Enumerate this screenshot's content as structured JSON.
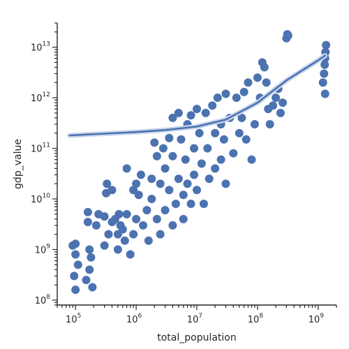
{
  "chart_data": {
    "type": "scatter",
    "title": "",
    "xlabel": "total_population",
    "ylabel": "gdp_value",
    "x_scale": "log",
    "y_scale": "log",
    "xlim": [
      50000,
      2000000000
    ],
    "ylim": [
      80000000,
      30000000000000
    ],
    "x_ticks": [
      {
        "base": "10",
        "exp": "5",
        "value": 100000
      },
      {
        "base": "10",
        "exp": "6",
        "value": 1000000
      },
      {
        "base": "10",
        "exp": "7",
        "value": 10000000
      },
      {
        "base": "10",
        "exp": "8",
        "value": 100000000
      },
      {
        "base": "10",
        "exp": "9",
        "value": 1000000000
      }
    ],
    "y_ticks": [
      {
        "base": "10",
        "exp": "8",
        "value": 100000000
      },
      {
        "base": "10",
        "exp": "9",
        "value": 1000000000
      },
      {
        "base": "10",
        "exp": "10",
        "value": 10000000000
      },
      {
        "base": "10",
        "exp": "11",
        "value": 100000000000
      },
      {
        "base": "10",
        "exp": "12",
        "value": 1000000000000
      },
      {
        "base": "10",
        "exp": "13",
        "value": 10000000000000
      }
    ],
    "grid": false,
    "colors": {
      "points": "#4c72b0",
      "trend": "#4c72b0",
      "axis": "#262626"
    },
    "series": [
      {
        "points": [
          [
            90000,
            1200000000.0
          ],
          [
            95000,
            300000000.0
          ],
          [
            100000,
            1300000000.0
          ],
          [
            100000,
            160000000.0
          ],
          [
            110000,
            500000000.0
          ],
          [
            100000,
            800000000.0
          ],
          [
            160000,
            5500000000.0
          ],
          [
            160000,
            3500000000.0
          ],
          [
            170000,
            400000000.0
          ],
          [
            150000,
            250000000.0
          ],
          [
            170000,
            1000000000.0
          ],
          [
            180000,
            700000000.0
          ],
          [
            190000,
            180000000.0
          ],
          [
            220000,
            3000000000.0
          ],
          [
            240000,
            5000000000.0
          ],
          [
            300000,
            4500000000.0
          ],
          [
            300000,
            1200000000.0
          ],
          [
            350000,
            2000000000.0
          ],
          [
            320000,
            13000000000.0
          ],
          [
            330000,
            20000000000.0
          ],
          [
            400000,
            15000000000.0
          ],
          [
            400000,
            3500000000.0
          ],
          [
            450000,
            4000000000.0
          ],
          [
            500000,
            2000000000.0
          ],
          [
            500000,
            1000000000.0
          ],
          [
            520000,
            5000000000.0
          ],
          [
            550000,
            3000000000.0
          ],
          [
            600000,
            2500000000.0
          ],
          [
            650000,
            1500000000.0
          ],
          [
            700000,
            40000000000.0
          ],
          [
            700000,
            5000000000.0
          ],
          [
            800000,
            800000000.0
          ],
          [
            900000,
            2000000000.0
          ],
          [
            900000,
            15000000000.0
          ],
          [
            1000000,
            20000000000.0
          ],
          [
            1000000,
            4000000000.0
          ],
          [
            1100000,
            12000000000.0
          ],
          [
            1200000,
            30000000000.0
          ],
          [
            1300000,
            3000000000.0
          ],
          [
            1500000,
            6000000000.0
          ],
          [
            1600000,
            1500000000.0
          ],
          [
            1800000,
            25000000000.0
          ],
          [
            1800000,
            10000000000.0
          ],
          [
            2000000,
            130000000000.0
          ],
          [
            2200000,
            4000000000.0
          ],
          [
            2200000,
            70000000000.0
          ],
          [
            2500000,
            20000000000.0
          ],
          [
            2500000,
            2000000000.0
          ],
          [
            2800000,
            100000000000.0
          ],
          [
            3000000,
            6000000000.0
          ],
          [
            3000000,
            40000000000.0
          ],
          [
            3500000,
            15000000000.0
          ],
          [
            3500000,
            160000000000.0
          ],
          [
            4000000,
            3000000000.0
          ],
          [
            4000000,
            70000000000.0
          ],
          [
            4000000,
            400000000000.0
          ],
          [
            4500000,
            8000000000.0
          ],
          [
            5000000,
            25000000000.0
          ],
          [
            5000000,
            500000000000.0
          ],
          [
            5500000,
            150000000000.0
          ],
          [
            6000000,
            4000000000.0
          ],
          [
            6000000,
            12000000000.0
          ],
          [
            6500000,
            60000000000.0
          ],
          [
            7000000,
            300000000000.0
          ],
          [
            7000000,
            20000000000.0
          ],
          [
            8000000,
            8000000000.0
          ],
          [
            8000000,
            450000000000.0
          ],
          [
            9000000,
            100000000000.0
          ],
          [
            9000000,
            30000000000.0
          ],
          [
            10000000,
            600000000000.0
          ],
          [
            10000000,
            15000000000.0
          ],
          [
            11000000,
            200000000000.0
          ],
          [
            12000000,
            50000000000.0
          ],
          [
            13000000,
            8000000000.0
          ],
          [
            14000000,
            500000000000.0
          ],
          [
            15000000,
            100000000000.0
          ],
          [
            16000000,
            25000000000.0
          ],
          [
            18000000,
            700000000000.0
          ],
          [
            20000000,
            40000000000.0
          ],
          [
            20000000,
            200000000000.0
          ],
          [
            22000000,
            1000000000000.0
          ],
          [
            25000000,
            60000000000.0
          ],
          [
            25000000,
            300000000000.0
          ],
          [
            28000000,
            150000000000.0
          ],
          [
            30000000,
            1200000000000.0
          ],
          [
            30000000,
            20000000000.0
          ],
          [
            35000000,
            400000000000.0
          ],
          [
            40000000,
            80000000000.0
          ],
          [
            45000000,
            1000000000000.0
          ],
          [
            50000000,
            200000000000.0
          ],
          [
            55000000,
            400000000000.0
          ],
          [
            60000000,
            1300000000000.0
          ],
          [
            65000000,
            150000000000.0
          ],
          [
            70000000,
            2000000000000.0
          ],
          [
            80000000,
            60000000000.0
          ],
          [
            90000000,
            300000000000.0
          ],
          [
            100000000,
            2500000000000.0
          ],
          [
            110000000,
            1000000000000.0
          ],
          [
            120000000,
            5000000000000.0
          ],
          [
            130000000,
            4000000000000.0
          ],
          [
            140000000,
            2000000000000.0
          ],
          [
            150000000,
            600000000000.0
          ],
          [
            160000000,
            300000000000.0
          ],
          [
            180000000,
            700000000000.0
          ],
          [
            200000000,
            1000000000000.0
          ],
          [
            220000000,
            1500000000000.0
          ],
          [
            240000000,
            500000000000.0
          ],
          [
            260000000,
            800000000000.0
          ],
          [
            300000000,
            15000000000000.0
          ],
          [
            310000000,
            18000000000000.0
          ],
          [
            320000000,
            17000000000000.0
          ],
          [
            1200000000,
            2000000000000.0
          ],
          [
            1250000000,
            3000000000000.0
          ],
          [
            1300000000,
            6000000000000.0
          ],
          [
            1320000000,
            8000000000000.0
          ],
          [
            1350000000,
            11000000000000.0
          ],
          [
            1300000000,
            1200000000000.0
          ],
          [
            1280000000,
            4500000000000.0
          ]
        ]
      }
    ],
    "trend_line": [
      [
        80000,
        180000000000.0
      ],
      [
        300000,
        195000000000.0
      ],
      [
        1000000,
        210000000000.0
      ],
      [
        3000000,
        230000000000.0
      ],
      [
        10000000,
        270000000000.0
      ],
      [
        30000000,
        370000000000.0
      ],
      [
        100000000,
        800000000000.0
      ],
      [
        300000000,
        2200000000000.0
      ],
      [
        1000000000,
        5500000000000.0
      ],
      [
        1300000000,
        6800000000000.0
      ]
    ]
  }
}
